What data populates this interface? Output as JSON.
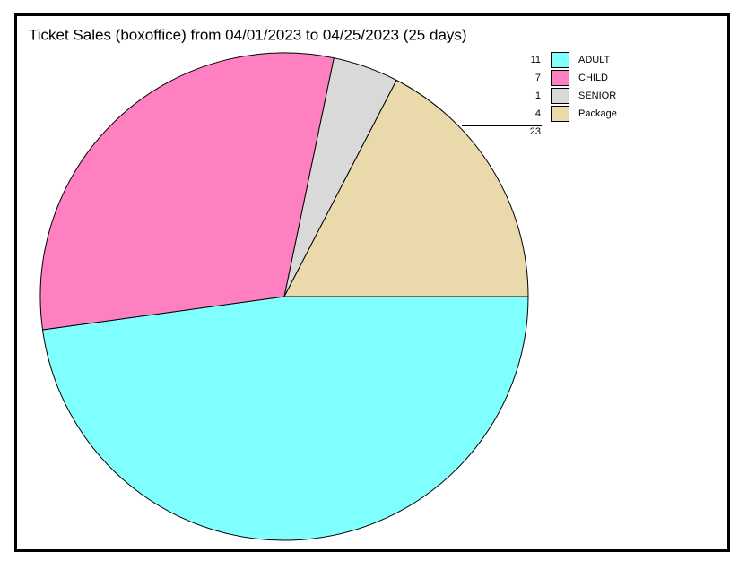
{
  "chart_data": {
    "type": "pie",
    "title": "Ticket Sales (boxoffice) from 04/01/2023 to 04/25/2023  (25 days)",
    "categories": [
      "ADULT",
      "CHILD",
      "SENIOR",
      "Package"
    ],
    "values": [
      11,
      7,
      1,
      4
    ],
    "colors": [
      "#80ffff",
      "#ff80c0",
      "#d9d9d9",
      "#ead9aa"
    ],
    "total": 23
  }
}
